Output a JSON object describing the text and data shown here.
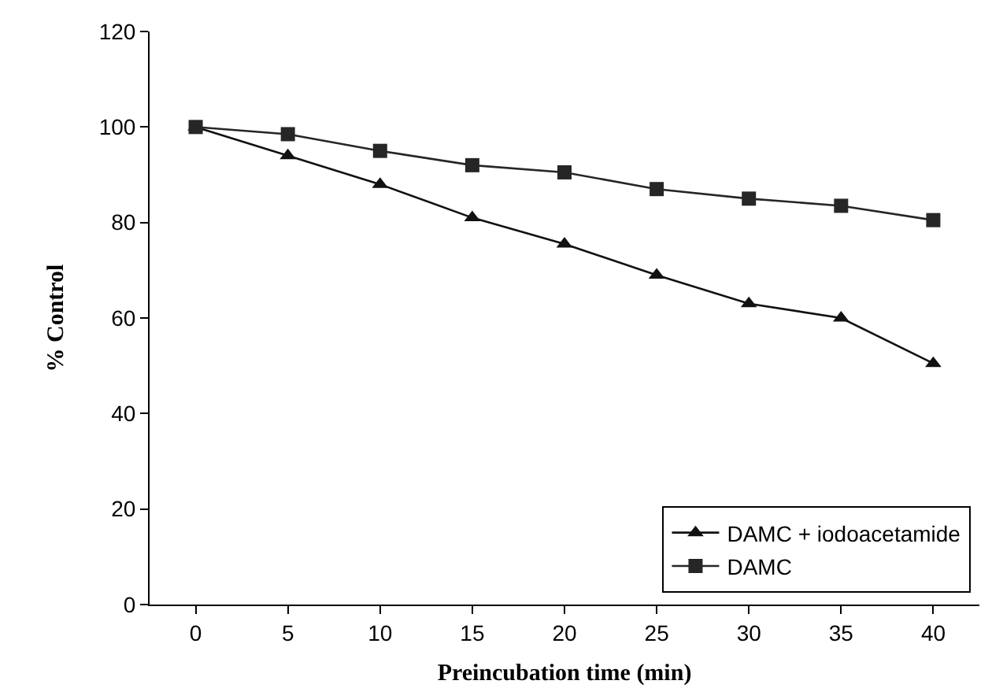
{
  "chart_data": {
    "type": "line",
    "xlabel": "Preincubation time (min)",
    "ylabel": "% Control",
    "x": [
      0,
      5,
      10,
      15,
      20,
      25,
      30,
      35,
      40
    ],
    "series": [
      {
        "name": "DAMC + iodoacetamide",
        "color": "#111111",
        "marker": "triangle",
        "values": [
          100,
          94,
          88,
          81,
          75.5,
          69,
          63,
          60,
          50.5
        ]
      },
      {
        "name": "DAMC",
        "color": "#262626",
        "marker": "square",
        "values": [
          100,
          98.5,
          95,
          92,
          90.5,
          87,
          85,
          83.5,
          80.5
        ]
      }
    ],
    "xlim": [
      -2.5,
      42.5
    ],
    "xticks": [
      0,
      5,
      10,
      15,
      20,
      25,
      30,
      35,
      40
    ],
    "ylim": [
      0,
      120
    ],
    "yticks": [
      0,
      20,
      40,
      60,
      80,
      100,
      120
    ],
    "grid": false,
    "legend": "bottom right",
    "line_style": "solid"
  }
}
